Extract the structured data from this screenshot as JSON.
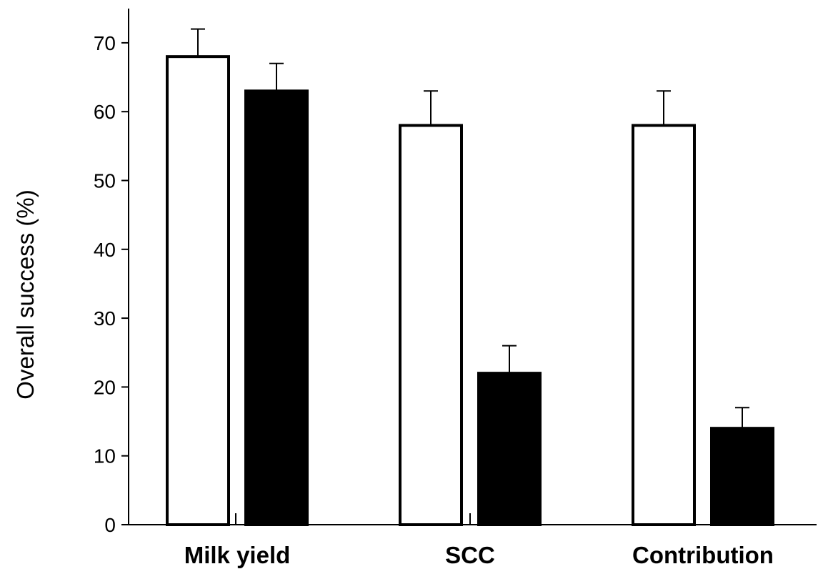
{
  "chart_data": {
    "type": "bar",
    "title": "",
    "xlabel": "",
    "ylabel": "Overall success (%)",
    "ylim": [
      0,
      75
    ],
    "yticks": [
      0,
      10,
      20,
      30,
      40,
      50,
      60,
      70
    ],
    "grid": false,
    "categories": [
      "Milk yield",
      "SCC",
      "Contribution"
    ],
    "series": [
      {
        "fill": "#ffffff",
        "values": [
          68,
          58,
          58
        ],
        "errors": [
          4,
          5,
          5
        ]
      },
      {
        "fill": "#000000",
        "values": [
          63,
          22,
          14
        ],
        "errors": [
          4,
          4,
          3
        ]
      }
    ]
  }
}
